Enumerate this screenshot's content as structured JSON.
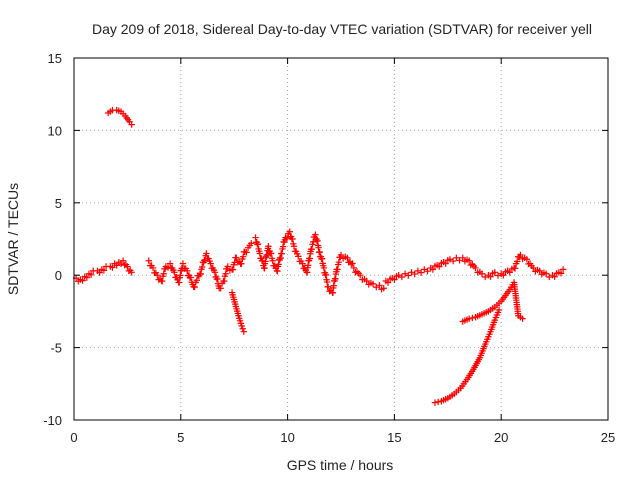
{
  "chart_data": {
    "type": "scatter",
    "title": "Day 209 of 2018, Sidereal Day-to-day VTEC variation (SDTVAR) for receiver yell",
    "xlabel": "GPS time / hours",
    "ylabel": "SDTVAR / TECUs",
    "xlim": [
      0,
      25
    ],
    "ylim": [
      -10,
      15
    ],
    "xticks": [
      0,
      5,
      10,
      15,
      20,
      25
    ],
    "yticks": [
      -10,
      -5,
      0,
      5,
      10,
      15
    ],
    "xtick_labels": [
      "0",
      "5",
      "10",
      "15",
      "20",
      "25"
    ],
    "ytick_labels": [
      "-10",
      "-5",
      "0",
      "5",
      "10",
      "15"
    ],
    "grid": true,
    "marker": "plus",
    "color": "#ff0000",
    "series": [
      {
        "name": "SDTVAR",
        "segments": [
          {
            "name": "early-high-arc",
            "x": [
              1.6,
              1.8,
              2.0,
              2.2,
              2.4,
              2.6,
              2.7
            ],
            "y": [
              11.2,
              11.4,
              11.4,
              11.3,
              11.0,
              10.6,
              10.4
            ]
          },
          {
            "name": "main-0-2.7h",
            "x": [
              0.1,
              0.3,
              0.5,
              0.7,
              0.9,
              1.1,
              1.3,
              1.5,
              1.7,
              1.9,
              2.1,
              2.3,
              2.5,
              2.7
            ],
            "y": [
              -0.2,
              -0.3,
              -0.1,
              0.1,
              0.3,
              0.3,
              0.4,
              0.6,
              0.6,
              0.8,
              0.9,
              1.0,
              0.6,
              0.2
            ]
          },
          {
            "name": "main-3.5-8.5h",
            "x": [
              3.5,
              3.7,
              3.9,
              4.1,
              4.3,
              4.5,
              4.7,
              4.9,
              5.1,
              5.3,
              5.6,
              5.9,
              6.2,
              6.4,
              6.6,
              6.8,
              7.0,
              7.2,
              7.4,
              7.6,
              7.8,
              8.0,
              8.3
            ],
            "y": [
              1.0,
              0.5,
              0.0,
              -0.4,
              0.6,
              0.8,
              0.2,
              -0.5,
              0.8,
              0.3,
              -0.8,
              0.1,
              1.5,
              0.8,
              0.2,
              -0.9,
              -0.4,
              0.6,
              0.4,
              1.2,
              0.8,
              1.6,
              2.2
            ]
          },
          {
            "name": "dip-7.5-8h",
            "x": [
              7.4,
              7.55,
              7.7,
              7.85,
              7.95
            ],
            "y": [
              -1.2,
              -2.0,
              -2.8,
              -3.5,
              -3.9
            ]
          },
          {
            "name": "main-8.5-14.5h",
            "x": [
              8.5,
              8.7,
              8.9,
              9.1,
              9.3,
              9.5,
              9.7,
              9.9,
              10.1,
              10.3,
              10.5,
              10.7,
              10.9,
              11.1,
              11.3,
              11.5,
              11.7,
              11.9,
              12.1,
              12.3,
              12.5,
              12.8,
              13.1,
              13.4,
              13.7,
              14.0,
              14.3,
              14.5
            ],
            "y": [
              2.6,
              1.5,
              0.5,
              2.0,
              1.0,
              0.3,
              1.5,
              2.6,
              3.0,
              2.0,
              1.3,
              0.8,
              0.2,
              1.8,
              2.8,
              1.6,
              0.5,
              -0.8,
              -1.2,
              0.4,
              1.4,
              1.2,
              0.5,
              0.0,
              -0.4,
              -0.6,
              -0.7,
              -0.9
            ]
          },
          {
            "name": "main-14.5-23h",
            "x": [
              14.6,
              14.9,
              15.2,
              15.5,
              15.8,
              16.1,
              16.4,
              16.7,
              17.0,
              17.3,
              17.6,
              17.9,
              18.2,
              18.5,
              18.8,
              19.1,
              19.4,
              19.7,
              20.0,
              20.3,
              20.6,
              20.9,
              21.2,
              21.5,
              21.8,
              22.1,
              22.4,
              22.7,
              22.9
            ],
            "y": [
              -0.4,
              -0.2,
              0.0,
              0.1,
              0.2,
              0.3,
              0.4,
              0.5,
              0.7,
              0.9,
              1.1,
              1.2,
              1.2,
              1.0,
              0.5,
              0.1,
              0.0,
              0.2,
              0.1,
              0.3,
              0.5,
              1.4,
              1.1,
              0.5,
              0.3,
              0.1,
              0.0,
              0.2,
              0.4
            ]
          },
          {
            "name": "descending-arc-19.3-20.5h",
            "x": [
              18.2,
              18.5,
              18.8,
              19.1,
              19.4,
              19.7,
              20.0,
              20.2,
              20.4,
              20.6,
              20.8,
              21.0
            ],
            "y": [
              -3.2,
              -3.0,
              -2.9,
              -2.7,
              -2.5,
              -2.2,
              -1.8,
              -1.4,
              -1.0,
              -0.5,
              -2.8,
              -3.0
            ]
          },
          {
            "name": "rising-arc-16.8-20h",
            "x": [
              16.9,
              17.2,
              17.5,
              17.8,
              18.1,
              18.4,
              18.7,
              19.0,
              19.3,
              19.5,
              19.7,
              19.9
            ],
            "y": [
              -8.8,
              -8.7,
              -8.5,
              -8.2,
              -7.8,
              -7.2,
              -6.5,
              -5.7,
              -4.6,
              -3.9,
              -3.1,
              -2.4
            ]
          }
        ]
      }
    ]
  }
}
